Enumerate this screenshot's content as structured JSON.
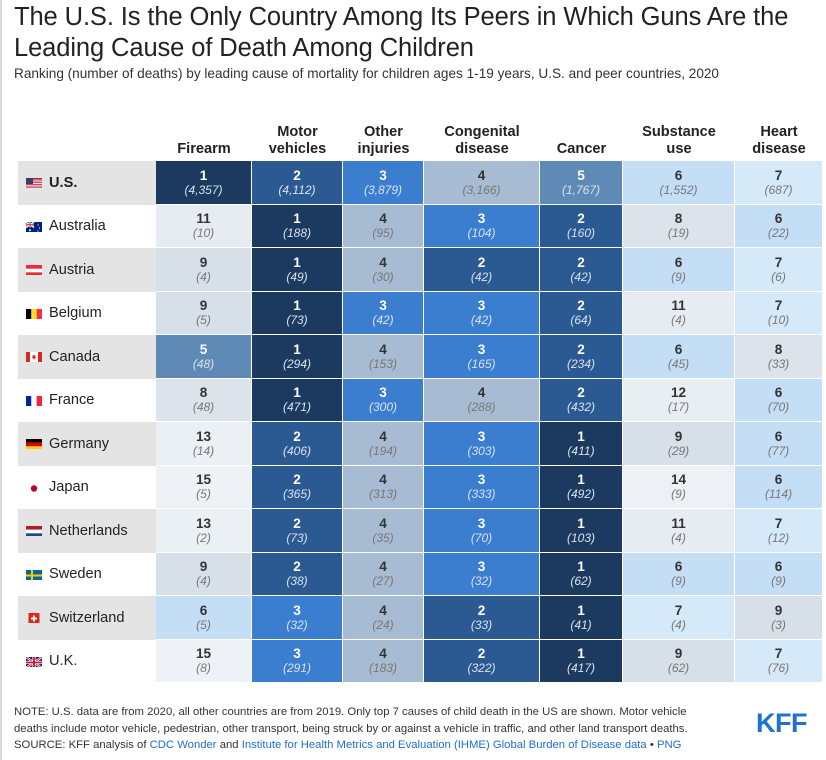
{
  "title": "The U.S. Is the Only Country Among Its Peers in Which Guns Are the Leading Cause of Death Among Children",
  "subtitle": "Ranking (number of deaths) by leading cause of mortality for children ages 1-19 years, U.S. and peer countries, 2020",
  "columns": [
    {
      "line1": "",
      "line2": "Firearm"
    },
    {
      "line1": "Motor",
      "line2": "vehicles"
    },
    {
      "line1": "Other",
      "line2": "injuries"
    },
    {
      "line1": "Congenital",
      "line2": "disease"
    },
    {
      "line1": "",
      "line2": "Cancer"
    },
    {
      "line1": "Substance",
      "line2": "use"
    },
    {
      "line1": "Heart",
      "line2": "disease"
    }
  ],
  "rows": [
    {
      "country": "U.S.",
      "flag": "us-flag-icon",
      "bold": true,
      "ranks": [
        "1",
        "2",
        "3",
        "4",
        "5",
        "6",
        "7"
      ],
      "deaths": [
        "(4,357)",
        "(4,112)",
        "(3,879)",
        "(3,166)",
        "(1,767)",
        "(1,552)",
        "(687)"
      ]
    },
    {
      "country": "Australia",
      "flag": "australia-flag-icon",
      "ranks": [
        "11",
        "1",
        "4",
        "3",
        "2",
        "8",
        "6"
      ],
      "deaths": [
        "(10)",
        "(188)",
        "(95)",
        "(104)",
        "(160)",
        "(19)",
        "(22)"
      ]
    },
    {
      "country": "Austria",
      "flag": "austria-flag-icon",
      "ranks": [
        "9",
        "1",
        "4",
        "2",
        "2",
        "6",
        "7"
      ],
      "deaths": [
        "(4)",
        "(49)",
        "(30)",
        "(42)",
        "(42)",
        "(9)",
        "(6)"
      ]
    },
    {
      "country": "Belgium",
      "flag": "belgium-flag-icon",
      "ranks": [
        "9",
        "1",
        "3",
        "3",
        "2",
        "11",
        "7"
      ],
      "deaths": [
        "(5)",
        "(73)",
        "(42)",
        "(42)",
        "(64)",
        "(4)",
        "(10)"
      ]
    },
    {
      "country": "Canada",
      "flag": "canada-flag-icon",
      "ranks": [
        "5",
        "1",
        "4",
        "3",
        "2",
        "6",
        "8"
      ],
      "deaths": [
        "(48)",
        "(294)",
        "(153)",
        "(165)",
        "(234)",
        "(45)",
        "(33)"
      ]
    },
    {
      "country": "France",
      "flag": "france-flag-icon",
      "ranks": [
        "8",
        "1",
        "3",
        "4",
        "2",
        "12",
        "6"
      ],
      "deaths": [
        "(48)",
        "(471)",
        "(300)",
        "(288)",
        "(432)",
        "(17)",
        "(70)"
      ]
    },
    {
      "country": "Germany",
      "flag": "germany-flag-icon",
      "ranks": [
        "13",
        "2",
        "4",
        "3",
        "1",
        "9",
        "6"
      ],
      "deaths": [
        "(14)",
        "(406)",
        "(194)",
        "(303)",
        "(411)",
        "(29)",
        "(77)"
      ]
    },
    {
      "country": "Japan",
      "flag": "japan-flag-icon",
      "ranks": [
        "15",
        "2",
        "4",
        "3",
        "1",
        "14",
        "6"
      ],
      "deaths": [
        "(5)",
        "(365)",
        "(313)",
        "(333)",
        "(492)",
        "(9)",
        "(114)"
      ]
    },
    {
      "country": "Netherlands",
      "flag": "netherlands-flag-icon",
      "ranks": [
        "13",
        "2",
        "4",
        "3",
        "1",
        "11",
        "7"
      ],
      "deaths": [
        "(2)",
        "(73)",
        "(35)",
        "(70)",
        "(103)",
        "(4)",
        "(12)"
      ]
    },
    {
      "country": "Sweden",
      "flag": "sweden-flag-icon",
      "ranks": [
        "9",
        "2",
        "4",
        "3",
        "1",
        "6",
        "6"
      ],
      "deaths": [
        "(4)",
        "(38)",
        "(27)",
        "(32)",
        "(62)",
        "(9)",
        "(9)"
      ]
    },
    {
      "country": "Switzerland",
      "flag": "switzerland-flag-icon",
      "ranks": [
        "6",
        "3",
        "4",
        "2",
        "1",
        "7",
        "9"
      ],
      "deaths": [
        "(5)",
        "(32)",
        "(24)",
        "(33)",
        "(41)",
        "(4)",
        "(3)"
      ]
    },
    {
      "country": "U.K.",
      "flag": "uk-flag-icon",
      "ranks": [
        "15",
        "3",
        "4",
        "2",
        "1",
        "9",
        "7"
      ],
      "deaths": [
        "(8)",
        "(291)",
        "(183)",
        "(322)",
        "(417)",
        "(62)",
        "(76)"
      ]
    }
  ],
  "note": {
    "line1": "NOTE: U.S. data are from 2020, all other countries are from 2019. Only top 7 causes of child death in the US are shown. Motor vehicle",
    "line2": "deaths include motor vehicle, pedestrian, other transport, being struck by or against a vehicle in traffic, and other land transport deaths.",
    "source_prefix": "SOURCE: KFF analysis of ",
    "link1": "CDC Wonder",
    "and": " and ",
    "link2": "Institute for Health Metrics and Evaluation (IHME) Global Burden of Disease data",
    "sep": " • ",
    "link3": "PNG"
  },
  "logo": "KFF",
  "rank_colors": {
    "1": "#1c3a60",
    "2": "#2b5a93",
    "3": "#3b7ecf",
    "4": "#a7bcd3",
    "5": "#5f8ab6",
    "6": "#c3def5",
    "7": "#d6e9f9",
    "8": "#dce3eb",
    "9": "#d7dfe8",
    "10": "#e3e9ef",
    "11": "#e6ecf2",
    "12": "#e9eef3",
    "13": "#ebf0f4",
    "14": "#edf1f5",
    "15": "#eef2f6"
  },
  "chart_data": {
    "type": "table",
    "title": "The U.S. Is the Only Country Among Its Peers in Which Guns Are the Leading Cause of Death Among Children",
    "subtitle": "Ranking (number of deaths) by leading cause of mortality for children ages 1-19 years, U.S. and peer countries, 2020",
    "columns": [
      "Firearm",
      "Motor vehicles",
      "Other injuries",
      "Congenital disease",
      "Cancer",
      "Substance use",
      "Heart disease"
    ],
    "row_labels": [
      "U.S.",
      "Australia",
      "Austria",
      "Belgium",
      "Canada",
      "France",
      "Germany",
      "Japan",
      "Netherlands",
      "Sweden",
      "Switzerland",
      "U.K."
    ],
    "ranks": [
      [
        1,
        2,
        3,
        4,
        5,
        6,
        7
      ],
      [
        11,
        1,
        4,
        3,
        2,
        8,
        6
      ],
      [
        9,
        1,
        4,
        2,
        2,
        6,
        7
      ],
      [
        9,
        1,
        3,
        3,
        2,
        11,
        7
      ],
      [
        5,
        1,
        4,
        3,
        2,
        6,
        8
      ],
      [
        8,
        1,
        3,
        4,
        2,
        12,
        6
      ],
      [
        13,
        2,
        4,
        3,
        1,
        9,
        6
      ],
      [
        15,
        2,
        4,
        3,
        1,
        14,
        6
      ],
      [
        13,
        2,
        4,
        3,
        1,
        11,
        7
      ],
      [
        9,
        2,
        4,
        3,
        1,
        6,
        6
      ],
      [
        6,
        3,
        4,
        2,
        1,
        7,
        9
      ],
      [
        15,
        3,
        4,
        2,
        1,
        9,
        7
      ]
    ],
    "deaths": [
      [
        4357,
        4112,
        3879,
        3166,
        1767,
        1552,
        687
      ],
      [
        10,
        188,
        95,
        104,
        160,
        19,
        22
      ],
      [
        4,
        49,
        30,
        42,
        42,
        9,
        6
      ],
      [
        5,
        73,
        42,
        42,
        64,
        4,
        10
      ],
      [
        48,
        294,
        153,
        165,
        234,
        45,
        33
      ],
      [
        48,
        471,
        300,
        288,
        432,
        17,
        70
      ],
      [
        14,
        406,
        194,
        303,
        411,
        29,
        77
      ],
      [
        5,
        365,
        313,
        333,
        492,
        9,
        114
      ],
      [
        2,
        73,
        35,
        70,
        103,
        4,
        12
      ],
      [
        4,
        38,
        27,
        32,
        62,
        9,
        9
      ],
      [
        5,
        32,
        24,
        33,
        41,
        4,
        3
      ],
      [
        8,
        291,
        183,
        322,
        417,
        62,
        76
      ]
    ]
  }
}
